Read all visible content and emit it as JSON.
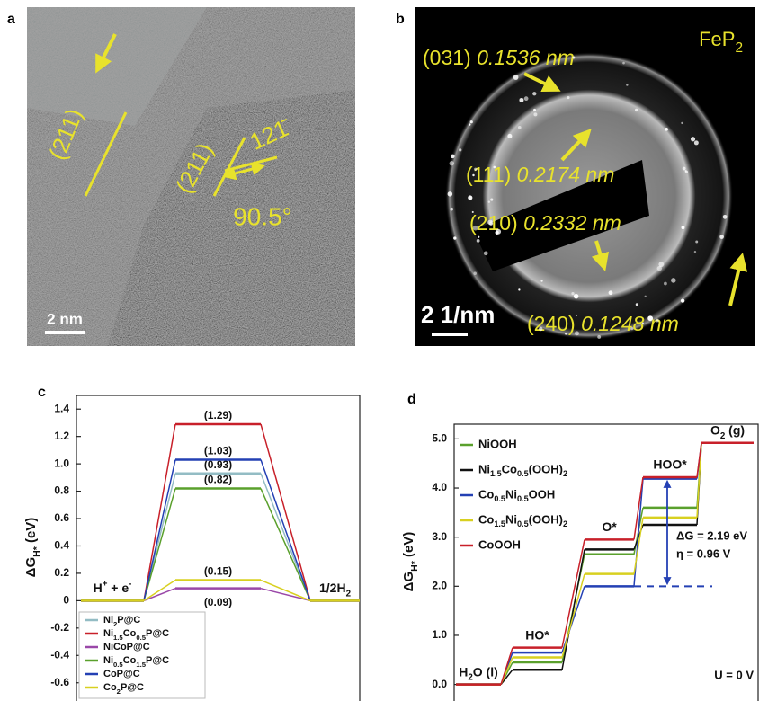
{
  "figure": {
    "panel_labels": [
      "a",
      "b",
      "c",
      "d"
    ],
    "images": [
      {
        "annotations": [
          "(211)",
          "(211)",
          "121̄",
          "90.5°"
        ],
        "scale_bar": "2 nm"
      },
      {
        "title": "FeP2",
        "rings": [
          {
            "hkl": "(031)",
            "d": "0.1536 nm"
          },
          {
            "hkl": "(111)",
            "d": "0.2174 nm"
          },
          {
            "hkl": "(210)",
            "d": "0.2332 nm"
          },
          {
            "hkl": "(240)",
            "d": "0.1248 nm"
          }
        ],
        "scale_bar": "2 1/nm"
      }
    ]
  },
  "chart_data": [
    {
      "type": "step",
      "ylabel": {
        "symbol": "ΔG",
        "subscript": "H*",
        "unit": " (eV)"
      },
      "categories": [
        "H+ + e-",
        null,
        "1/2H2"
      ],
      "series": [
        {
          "name": "Ni2P@C",
          "color": "#93bcc4",
          "values": [
            0,
            0.93,
            0
          ],
          "value_labels": [
            null,
            "(0.93)",
            null
          ]
        },
        {
          "name": "Ni1.5Co0.5P@C",
          "color": "#c8202a",
          "values": [
            0,
            1.29,
            0
          ],
          "value_labels": [
            null,
            "(1.29)",
            null
          ]
        },
        {
          "name": "NiCoP@C",
          "color": "#9a48a8",
          "values": [
            0,
            0.09,
            0
          ],
          "value_labels": [
            null,
            "(0.09)",
            null
          ]
        },
        {
          "name": "Ni0.5Co1.5P@C",
          "color": "#5aa02c",
          "values": [
            0,
            0.82,
            0
          ],
          "value_labels": [
            null,
            "(0.82)",
            null
          ]
        },
        {
          "name": "CoP@C",
          "color": "#2440b4",
          "values": [
            0,
            1.03,
            0
          ],
          "value_labels": [
            null,
            "(1.03)",
            null
          ]
        },
        {
          "name": "Co2P@C",
          "color": "#d8d020",
          "values": [
            0,
            0.15,
            0
          ],
          "value_labels": [
            null,
            "(0.15)",
            null
          ]
        }
      ],
      "ylim": [
        -0.72,
        1.5
      ],
      "yticks": [
        -0.6,
        -0.4,
        -0.2,
        0,
        0.2,
        0.4,
        0.6,
        0.8,
        {
          "value": 1,
          "label": "1.0"
        },
        1.2,
        1.4
      ],
      "legend": "lower left"
    },
    {
      "type": "step",
      "ylabel": {
        "symbol": "ΔG",
        "subscript": "H*",
        "unit": " (eV)"
      },
      "categories": [
        "H2O (l)",
        "HO*",
        "O*",
        "HOO*",
        "O2 (g)"
      ],
      "series": [
        {
          "name": "NiOOH",
          "color": "#5aa02c",
          "values": [
            0,
            0.45,
            2.65,
            3.6,
            4.92
          ]
        },
        {
          "name": "Ni1.5Co0.5(OOH)2",
          "color": "#111111",
          "values": [
            0,
            0.3,
            2.75,
            3.25,
            4.92
          ]
        },
        {
          "name": "Co0.5Ni0.5OOH",
          "color": "#2440b4",
          "values": [
            0,
            0.65,
            2.0,
            4.19,
            4.92
          ]
        },
        {
          "name": "Co1.5Ni0.5(OOH)2",
          "color": "#d8d020",
          "values": [
            0,
            0.55,
            2.25,
            3.4,
            4.92
          ]
        },
        {
          "name": "CoOOH",
          "color": "#c8202a",
          "values": [
            0,
            0.75,
            2.95,
            4.22,
            4.92
          ]
        }
      ],
      "ylim": [
        -0.3,
        5.3
      ],
      "yticks": [
        {
          "value": 0,
          "label": "0.0"
        },
        {
          "value": 1,
          "label": "1.0"
        },
        {
          "value": 2,
          "label": "2.0"
        },
        {
          "value": 3,
          "label": "3.0"
        },
        {
          "value": 4,
          "label": "4.0"
        },
        {
          "value": 5,
          "label": "5.0"
        }
      ],
      "annotations": [
        "ΔG = 2.19 eV",
        "η = 0.96 V",
        "U = 0 V"
      ],
      "legend": "upper left"
    }
  ]
}
